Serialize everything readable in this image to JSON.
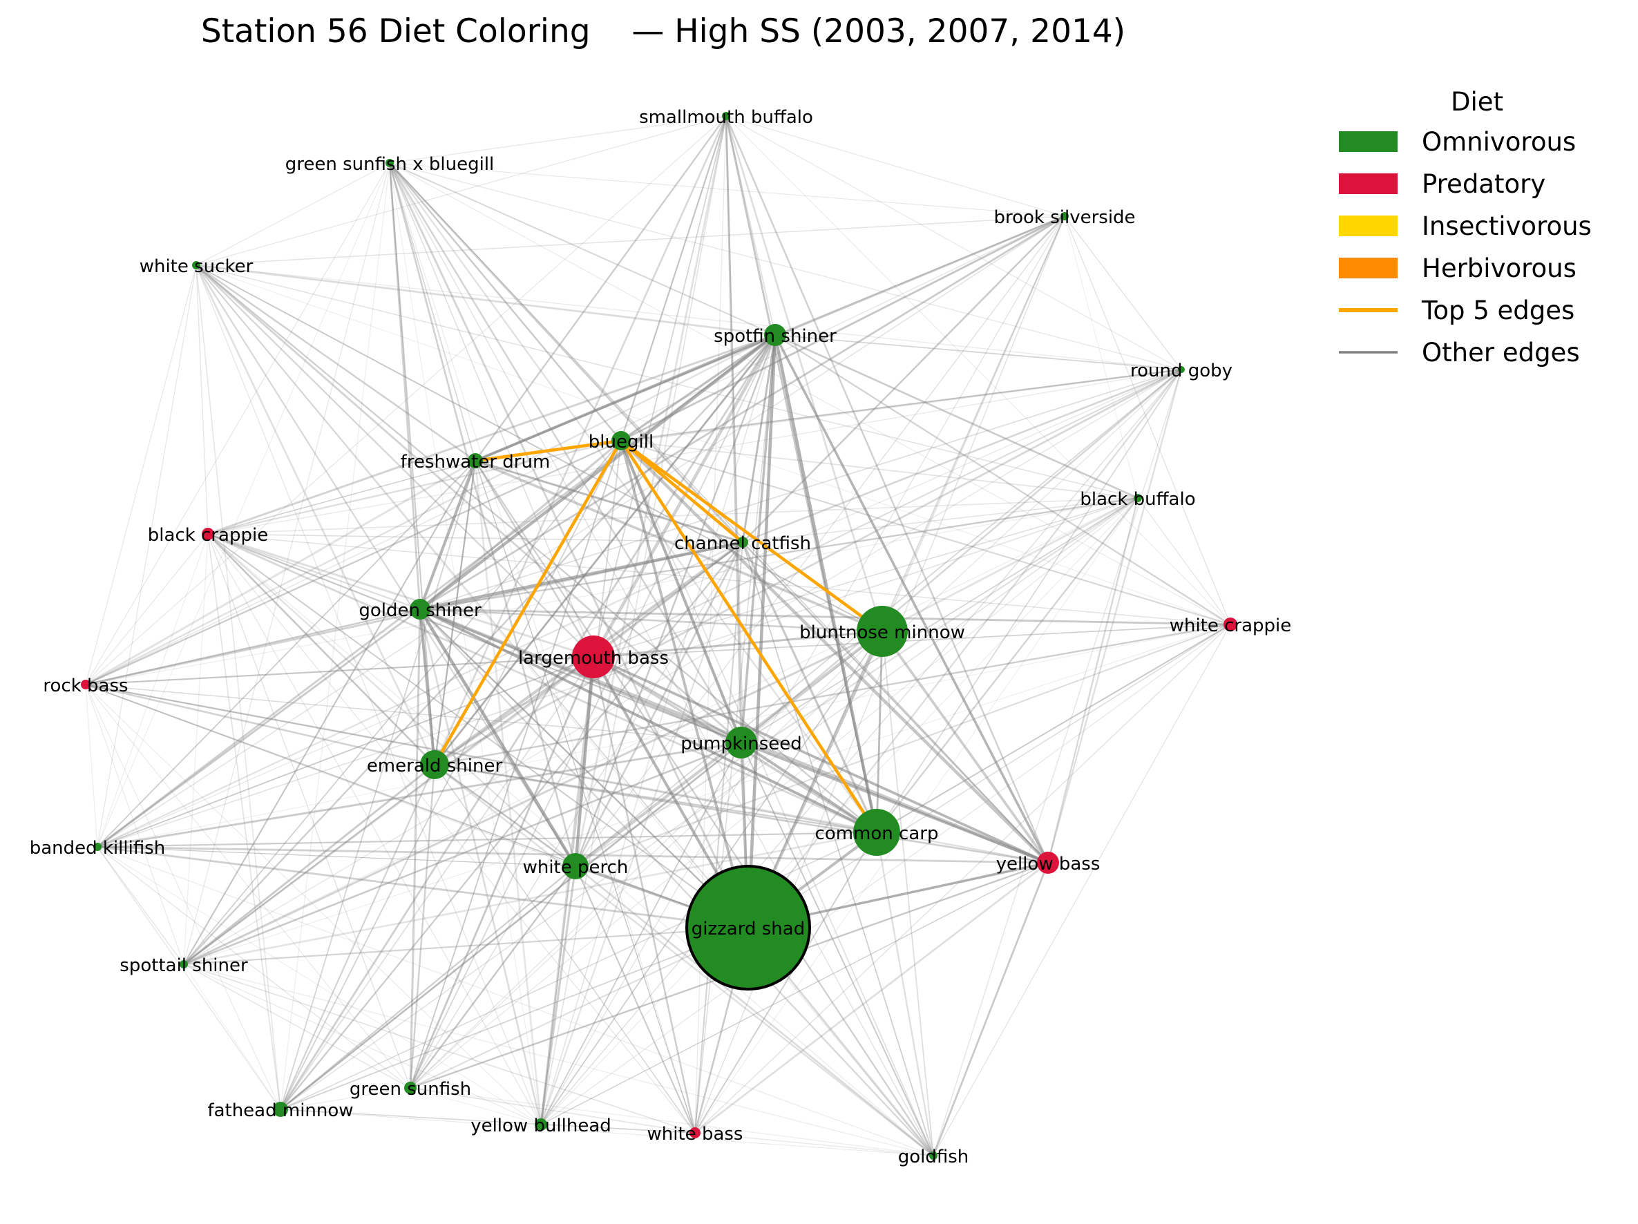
{
  "title": "Station 56 Diet Coloring    — High SS (2003, 2007, 2014)",
  "colors": {
    "Omnivorous": "#228B22",
    "Predatory": "#DC143C",
    "Insectivorous": "#FFD700",
    "Herbivorous": "#FF8C00",
    "top_edge": "#FFA500",
    "other_edge": "#808080"
  },
  "legend": {
    "title": "Diet",
    "items": [
      {
        "label": "Omnivorous",
        "kind": "patch",
        "color": "#228B22"
      },
      {
        "label": "Predatory",
        "kind": "patch",
        "color": "#DC143C"
      },
      {
        "label": "Insectivorous",
        "kind": "patch",
        "color": "#FFD700"
      },
      {
        "label": "Herbivorous",
        "kind": "patch",
        "color": "#FF8C00"
      },
      {
        "label": "Top 5 edges",
        "kind": "line",
        "color": "#FFA500"
      },
      {
        "label": "Other edges",
        "kind": "line",
        "color": "#808080"
      }
    ]
  },
  "graph": {
    "nodes": [
      {
        "id": "gizzard shad",
        "diet": "Omnivorous",
        "importance": 1.0,
        "highlight": true
      },
      {
        "id": "bluntnose minnow",
        "diet": "Omnivorous",
        "importance": 0.2
      },
      {
        "id": "common carp",
        "diet": "Omnivorous",
        "importance": 0.17
      },
      {
        "id": "largemouth bass",
        "diet": "Predatory",
        "importance": 0.13
      },
      {
        "id": "pumpkinseed",
        "diet": "Omnivorous",
        "importance": 0.08
      },
      {
        "id": "emerald shiner",
        "diet": "Omnivorous",
        "importance": 0.07
      },
      {
        "id": "white perch",
        "diet": "Omnivorous",
        "importance": 0.06
      },
      {
        "id": "golden shiner",
        "diet": "Omnivorous",
        "importance": 0.04
      },
      {
        "id": "spotfin shiner",
        "diet": "Omnivorous",
        "importance": 0.04
      },
      {
        "id": "yellow bass",
        "diet": "Predatory",
        "importance": 0.04
      },
      {
        "id": "bluegill",
        "diet": "Omnivorous",
        "importance": 0.03
      },
      {
        "id": "freshwater drum",
        "diet": "Omnivorous",
        "importance": 0.015
      },
      {
        "id": "channel catfish",
        "diet": "Omnivorous",
        "importance": 0.008
      },
      {
        "id": "black crappie",
        "diet": "Predatory",
        "importance": 0.012
      },
      {
        "id": "white crappie",
        "diet": "Predatory",
        "importance": 0.015
      },
      {
        "id": "rock bass",
        "diet": "Predatory",
        "importance": 0.006
      },
      {
        "id": "white bass",
        "diet": "Predatory",
        "importance": 0.01
      },
      {
        "id": "fathead minnow",
        "diet": "Omnivorous",
        "importance": 0.015
      },
      {
        "id": "green sunfish",
        "diet": "Omnivorous",
        "importance": 0.01
      },
      {
        "id": "yellow bullhead",
        "diet": "Omnivorous",
        "importance": 0.01
      },
      {
        "id": "smallmouth buffalo",
        "diet": "Omnivorous",
        "importance": 0.004
      },
      {
        "id": "green sunfish x bluegill",
        "diet": "Omnivorous",
        "importance": 0.004
      },
      {
        "id": "white sucker",
        "diet": "Omnivorous",
        "importance": 0.004
      },
      {
        "id": "brook silverside",
        "diet": "Omnivorous",
        "importance": 0.005
      },
      {
        "id": "round goby",
        "diet": "Omnivorous",
        "importance": 0.004
      },
      {
        "id": "black buffalo",
        "diet": "Omnivorous",
        "importance": 0.004
      },
      {
        "id": "banded killifish",
        "diet": "Omnivorous",
        "importance": 0.004
      },
      {
        "id": "spottail shiner",
        "diet": "Omnivorous",
        "importance": 0.004
      },
      {
        "id": "goldfish",
        "diet": "Omnivorous",
        "importance": 0.004
      }
    ],
    "top_edges": [
      [
        "freshwater drum",
        "bluegill"
      ],
      [
        "bluegill",
        "emerald shiner"
      ],
      [
        "bluegill",
        "channel catfish"
      ],
      [
        "bluegill",
        "bluntnose minnow"
      ],
      [
        "bluegill",
        "common carp"
      ]
    ],
    "hub_nodes": [
      "gizzard shad",
      "bluntnose minnow",
      "common carp",
      "largemouth bass",
      "pumpkinseed",
      "emerald shiner",
      "white perch",
      "golden shiner",
      "spotfin shiner",
      "bluegill",
      "freshwater drum",
      "channel catfish",
      "yellow bass"
    ]
  }
}
